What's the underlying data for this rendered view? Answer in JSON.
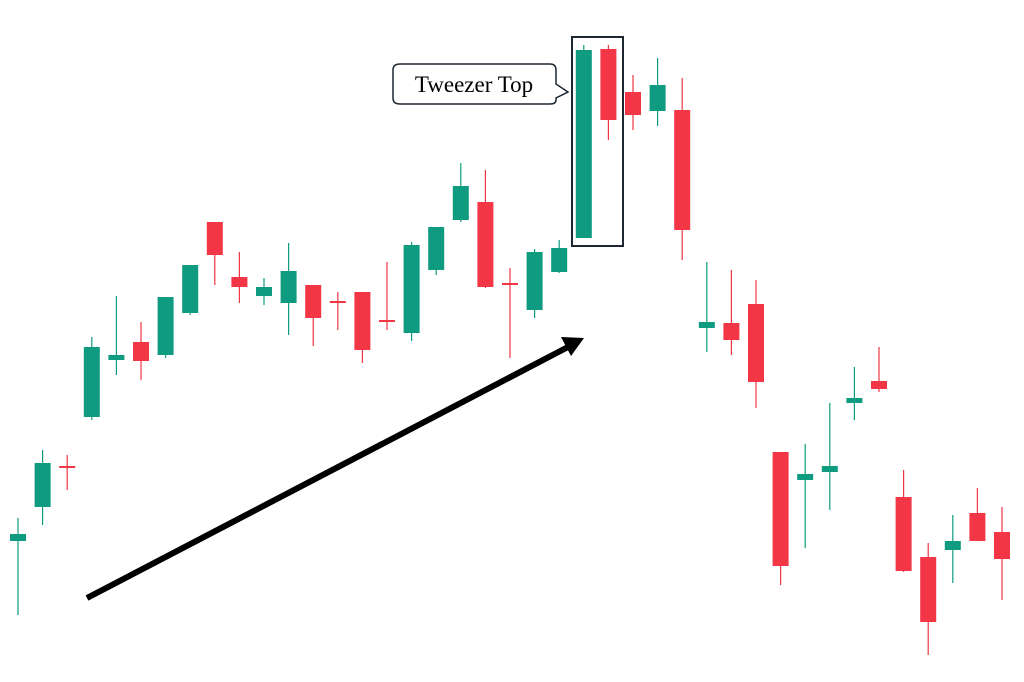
{
  "chart_data": {
    "type": "candlestick",
    "annotation": "Tweezer Top",
    "up_color": "#0f9b7f",
    "down_color": "#f23645",
    "ylim": [
      0,
      68.2
    ],
    "open": [
      14.1,
      17.5,
      21.6,
      26.5,
      32.2,
      34.0,
      32.7,
      36.9,
      46.0,
      40.5,
      38.6,
      37.9,
      39.7,
      38.1,
      39.0,
      36.2,
      34.9,
      41.2,
      46.2,
      48.0,
      39.9,
      37.2,
      41.0,
      44.4,
      63.3,
      59.0,
      57.1,
      57.2,
      35.4,
      35.9,
      37.8,
      23.0,
      20.2,
      21.0,
      27.9,
      30.1,
      18.5,
      12.5,
      13.2,
      16.9,
      15.0
    ],
    "high": [
      16.4,
      23.2,
      22.7,
      34.5,
      38.6,
      36.0,
      38.5,
      41.7,
      46.0,
      43.0,
      40.4,
      43.9,
      39.7,
      39.0,
      39.0,
      42.0,
      44.0,
      45.5,
      51.9,
      51.2,
      41.4,
      43.3,
      44.2,
      63.7,
      63.7,
      60.7,
      62.4,
      60.4,
      42.0,
      41.2,
      40.2,
      23.0,
      23.8,
      27.9,
      31.5,
      33.5,
      21.2,
      13.9,
      16.7,
      19.4,
      17.5
    ],
    "low": [
      6.7,
      15.7,
      19.2,
      26.2,
      30.7,
      30.2,
      32.4,
      36.7,
      39.7,
      37.9,
      37.7,
      34.7,
      33.6,
      35.2,
      31.9,
      35.2,
      34.1,
      40.7,
      46.0,
      39.4,
      32.4,
      36.4,
      40.9,
      44.4,
      54.2,
      55.2,
      55.6,
      42.2,
      33.0,
      32.7,
      27.4,
      9.7,
      13.4,
      17.2,
      26.2,
      29.0,
      11.0,
      2.7,
      9.9,
      14.1,
      8.2
    ],
    "close": [
      14.8,
      21.9,
      21.4,
      33.5,
      32.7,
      32.1,
      38.5,
      41.7,
      42.7,
      39.5,
      39.5,
      41.1,
      36.4,
      37.9,
      33.2,
      36.0,
      43.7,
      45.5,
      49.6,
      39.5,
      39.7,
      43.0,
      43.4,
      63.2,
      56.2,
      56.7,
      59.7,
      45.2,
      36.0,
      34.2,
      30.0,
      11.6,
      20.8,
      21.6,
      28.4,
      29.3,
      11.1,
      6.0,
      14.1,
      14.1,
      12.3
    ]
  }
}
